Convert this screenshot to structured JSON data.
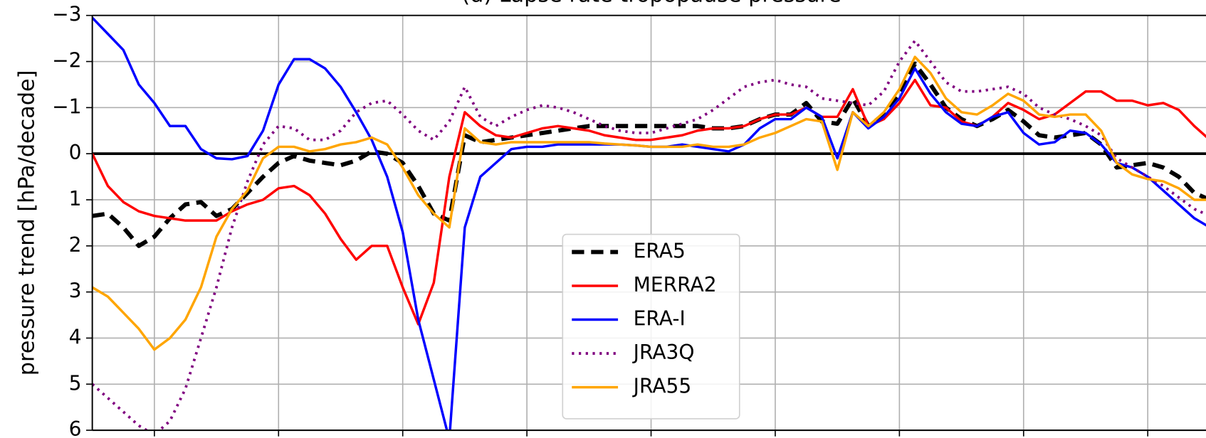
{
  "chart_data": {
    "type": "line",
    "title": "(d) Lapse rate tropopause pressure",
    "ylabel": "pressure trend [hPa/decade]",
    "x": [
      -90,
      -87.5,
      -85,
      -82.5,
      -80,
      -77.5,
      -75,
      -72.5,
      -70,
      -67.5,
      -65,
      -62.5,
      -60,
      -57.5,
      -55,
      -52.5,
      -50,
      -47.5,
      -45,
      -42.5,
      -40,
      -37.5,
      -35,
      -32.5,
      -30,
      -27.5,
      -25,
      -22.5,
      -20,
      -17.5,
      -15,
      -12.5,
      -10,
      -7.5,
      -5,
      -2.5,
      0,
      2.5,
      5,
      7.5,
      10,
      12.5,
      15,
      17.5,
      20,
      22.5,
      25,
      27.5,
      30,
      32.5,
      35,
      37.5,
      40,
      42.5,
      45,
      47.5,
      50,
      52.5,
      55,
      57.5,
      60,
      62.5,
      65,
      67.5,
      70,
      72.5,
      75,
      77.5,
      80,
      82.5,
      85,
      87.5,
      90
    ],
    "series": [
      {
        "name": "ERA5",
        "color": "#000000",
        "style": "dashed",
        "values": [
          1.35,
          1.3,
          1.6,
          2.0,
          1.8,
          1.4,
          1.1,
          1.05,
          1.35,
          1.2,
          0.85,
          0.5,
          0.2,
          0.05,
          0.15,
          0.2,
          0.25,
          0.15,
          -0.05,
          0.0,
          0.2,
          0.7,
          1.3,
          1.45,
          -0.4,
          -0.25,
          -0.3,
          -0.35,
          -0.4,
          -0.45,
          -0.5,
          -0.55,
          -0.6,
          -0.6,
          -0.6,
          -0.6,
          -0.6,
          -0.6,
          -0.6,
          -0.6,
          -0.55,
          -0.55,
          -0.6,
          -0.75,
          -0.85,
          -0.85,
          -1.1,
          -0.7,
          -0.65,
          -1.2,
          -0.6,
          -0.85,
          -1.3,
          -1.95,
          -1.5,
          -1.0,
          -0.75,
          -0.6,
          -0.75,
          -0.95,
          -0.7,
          -0.4,
          -0.35,
          -0.4,
          -0.45,
          -0.2,
          0.3,
          0.25,
          0.2,
          0.3,
          0.5,
          0.85,
          1.0
        ]
      },
      {
        "name": "MERRA2",
        "color": "#ff0000",
        "style": "solid",
        "values": [
          0.0,
          0.7,
          1.05,
          1.25,
          1.35,
          1.4,
          1.45,
          1.45,
          1.45,
          1.25,
          1.1,
          1.0,
          0.75,
          0.7,
          0.9,
          1.3,
          1.85,
          2.3,
          2.0,
          2.0,
          2.9,
          3.7,
          2.8,
          0.5,
          -0.9,
          -0.6,
          -0.4,
          -0.35,
          -0.45,
          -0.55,
          -0.6,
          -0.55,
          -0.5,
          -0.4,
          -0.35,
          -0.3,
          -0.3,
          -0.35,
          -0.4,
          -0.5,
          -0.55,
          -0.55,
          -0.6,
          -0.75,
          -0.85,
          -0.85,
          -1.0,
          -0.8,
          -0.8,
          -1.4,
          -0.6,
          -0.75,
          -1.1,
          -1.6,
          -1.05,
          -1.0,
          -0.7,
          -0.6,
          -0.8,
          -1.1,
          -0.95,
          -0.75,
          -0.85,
          -1.1,
          -1.35,
          -1.35,
          -1.15,
          -1.15,
          -1.05,
          -1.1,
          -0.95,
          -0.6,
          -0.3
        ]
      },
      {
        "name": "ERA-I",
        "color": "#0000ff",
        "style": "solid",
        "values": [
          -2.95,
          -2.6,
          -2.25,
          -1.5,
          -1.1,
          -0.6,
          -0.6,
          -0.1,
          0.1,
          0.12,
          0.05,
          -0.5,
          -1.5,
          -2.05,
          -2.05,
          -1.85,
          -1.45,
          -0.9,
          -0.3,
          0.5,
          1.7,
          3.6,
          4.9,
          6.2,
          1.6,
          0.5,
          0.2,
          -0.1,
          -0.15,
          -0.15,
          -0.2,
          -0.2,
          -0.2,
          -0.2,
          -0.2,
          -0.18,
          -0.15,
          -0.15,
          -0.2,
          -0.15,
          -0.1,
          -0.05,
          -0.2,
          -0.55,
          -0.75,
          -0.75,
          -1.0,
          -0.8,
          0.1,
          -0.9,
          -0.55,
          -0.8,
          -1.2,
          -1.85,
          -1.3,
          -0.9,
          -0.65,
          -0.6,
          -0.8,
          -0.9,
          -0.45,
          -0.2,
          -0.25,
          -0.5,
          -0.45,
          -0.2,
          0.2,
          0.3,
          0.5,
          0.8,
          1.1,
          1.4,
          1.6
        ]
      },
      {
        "name": "JRA3Q",
        "color": "#800080",
        "style": "dotted",
        "values": [
          5.0,
          5.3,
          5.6,
          5.9,
          6.1,
          5.8,
          5.1,
          4.0,
          2.9,
          1.6,
          0.6,
          -0.2,
          -0.6,
          -0.55,
          -0.3,
          -0.3,
          -0.5,
          -0.9,
          -1.1,
          -1.15,
          -0.85,
          -0.5,
          -0.3,
          -0.7,
          -1.45,
          -0.8,
          -0.6,
          -0.8,
          -0.95,
          -1.05,
          -1.0,
          -0.9,
          -0.75,
          -0.6,
          -0.5,
          -0.45,
          -0.45,
          -0.55,
          -0.65,
          -0.75,
          -0.95,
          -1.2,
          -1.45,
          -1.55,
          -1.6,
          -1.5,
          -1.45,
          -1.2,
          -1.15,
          -1.1,
          -1.05,
          -1.35,
          -2.0,
          -2.45,
          -2.0,
          -1.55,
          -1.35,
          -1.35,
          -1.4,
          -1.45,
          -1.3,
          -1.0,
          -0.85,
          -0.75,
          -0.6,
          -0.4,
          0.1,
          0.3,
          0.5,
          0.7,
          0.95,
          1.2,
          1.35
        ]
      },
      {
        "name": "JRA55",
        "color": "#ffa500",
        "style": "solid",
        "values": [
          2.9,
          3.1,
          3.45,
          3.8,
          4.25,
          4.0,
          3.6,
          2.9,
          1.8,
          1.2,
          0.8,
          0.1,
          -0.15,
          -0.15,
          -0.05,
          -0.1,
          -0.2,
          -0.25,
          -0.35,
          -0.2,
          0.3,
          0.9,
          1.3,
          1.6,
          -0.55,
          -0.25,
          -0.2,
          -0.25,
          -0.25,
          -0.25,
          -0.25,
          -0.25,
          -0.25,
          -0.22,
          -0.2,
          -0.18,
          -0.15,
          -0.15,
          -0.15,
          -0.2,
          -0.15,
          -0.15,
          -0.2,
          -0.35,
          -0.45,
          -0.6,
          -0.75,
          -0.7,
          0.35,
          -0.9,
          -0.6,
          -0.9,
          -1.4,
          -2.1,
          -1.75,
          -1.2,
          -0.9,
          -0.85,
          -1.05,
          -1.3,
          -1.15,
          -0.85,
          -0.8,
          -0.85,
          -0.85,
          -0.5,
          0.2,
          0.45,
          0.55,
          0.6,
          0.75,
          1.0,
          1.0
        ]
      }
    ],
    "xlim": [
      -90,
      90
    ],
    "xticks": [
      -80,
      -60,
      -40,
      -20,
      0,
      20,
      40,
      60,
      80
    ],
    "ylim": [
      6,
      -3
    ],
    "yticks": [
      {
        "value": -3,
        "label": "−3"
      },
      {
        "value": -2,
        "label": "−2"
      },
      {
        "value": -1,
        "label": "−1"
      },
      0,
      1,
      2,
      3,
      4,
      5,
      6
    ],
    "hline": 0,
    "grid": true,
    "legend": "lower center"
  }
}
